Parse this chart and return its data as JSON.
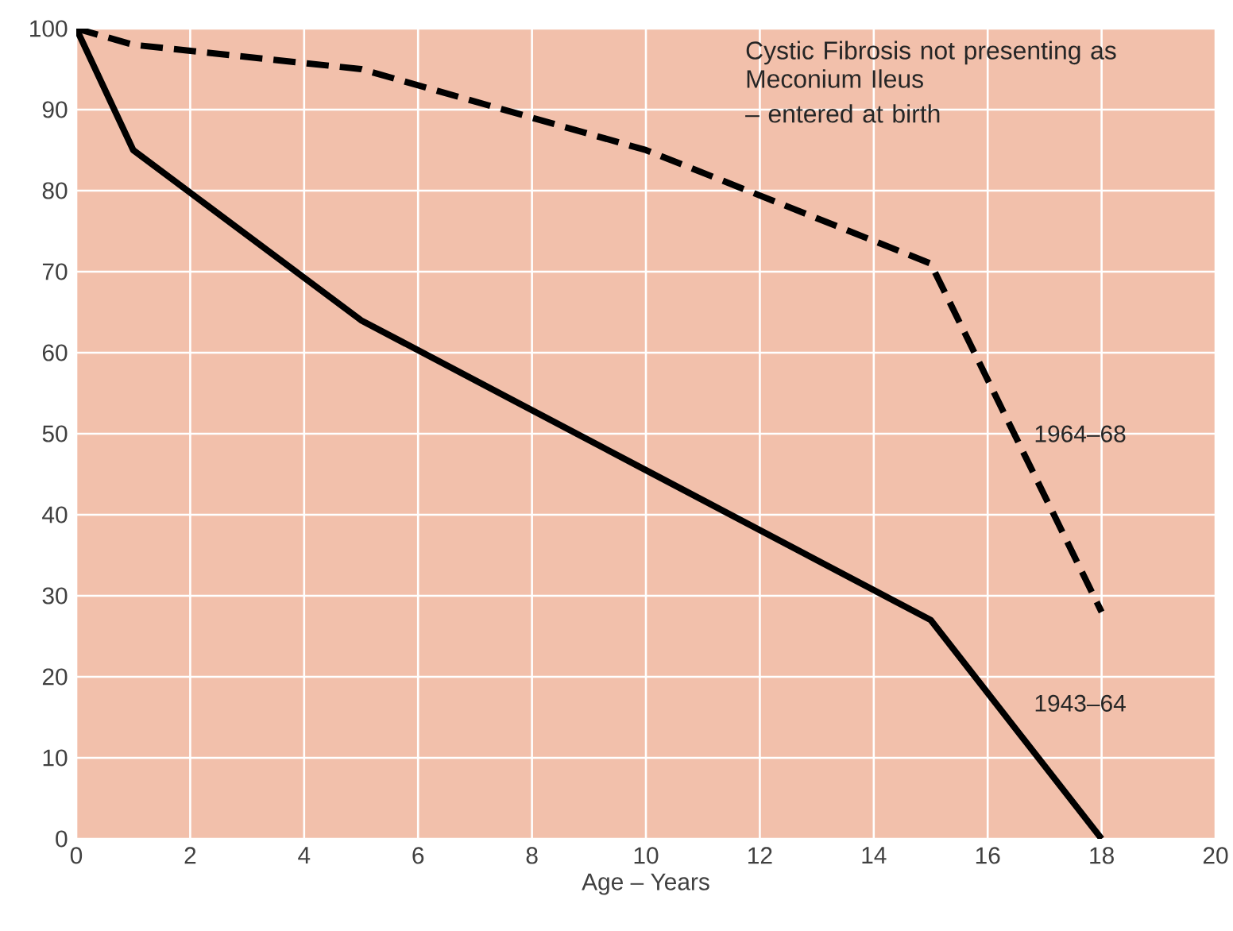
{
  "chart_data": {
    "type": "line",
    "xlabel": "Age – Years",
    "xlim": [
      0,
      20
    ],
    "ylim": [
      0,
      100
    ],
    "xticks": [
      0,
      2,
      4,
      6,
      8,
      10,
      12,
      14,
      16,
      18,
      20
    ],
    "yticks": [
      0,
      10,
      20,
      30,
      40,
      50,
      60,
      70,
      80,
      90,
      100
    ],
    "grid": true,
    "legend": false,
    "marker": "none",
    "annotations": [
      "Cystic Fibrosis not presenting as Meconium Ileus",
      "– entered at birth"
    ],
    "series": [
      {
        "name": "1964–68",
        "color": "#000000",
        "line_style": "dashed",
        "x": [
          0,
          1,
          5,
          10,
          15,
          18
        ],
        "values": [
          100,
          98,
          95,
          85,
          71,
          28
        ]
      },
      {
        "name": "1943–64",
        "color": "#000000",
        "line_style": "solid",
        "x": [
          0,
          1,
          5,
          10,
          15,
          18
        ],
        "values": [
          100,
          85,
          64,
          45.5,
          27,
          0
        ]
      }
    ]
  }
}
